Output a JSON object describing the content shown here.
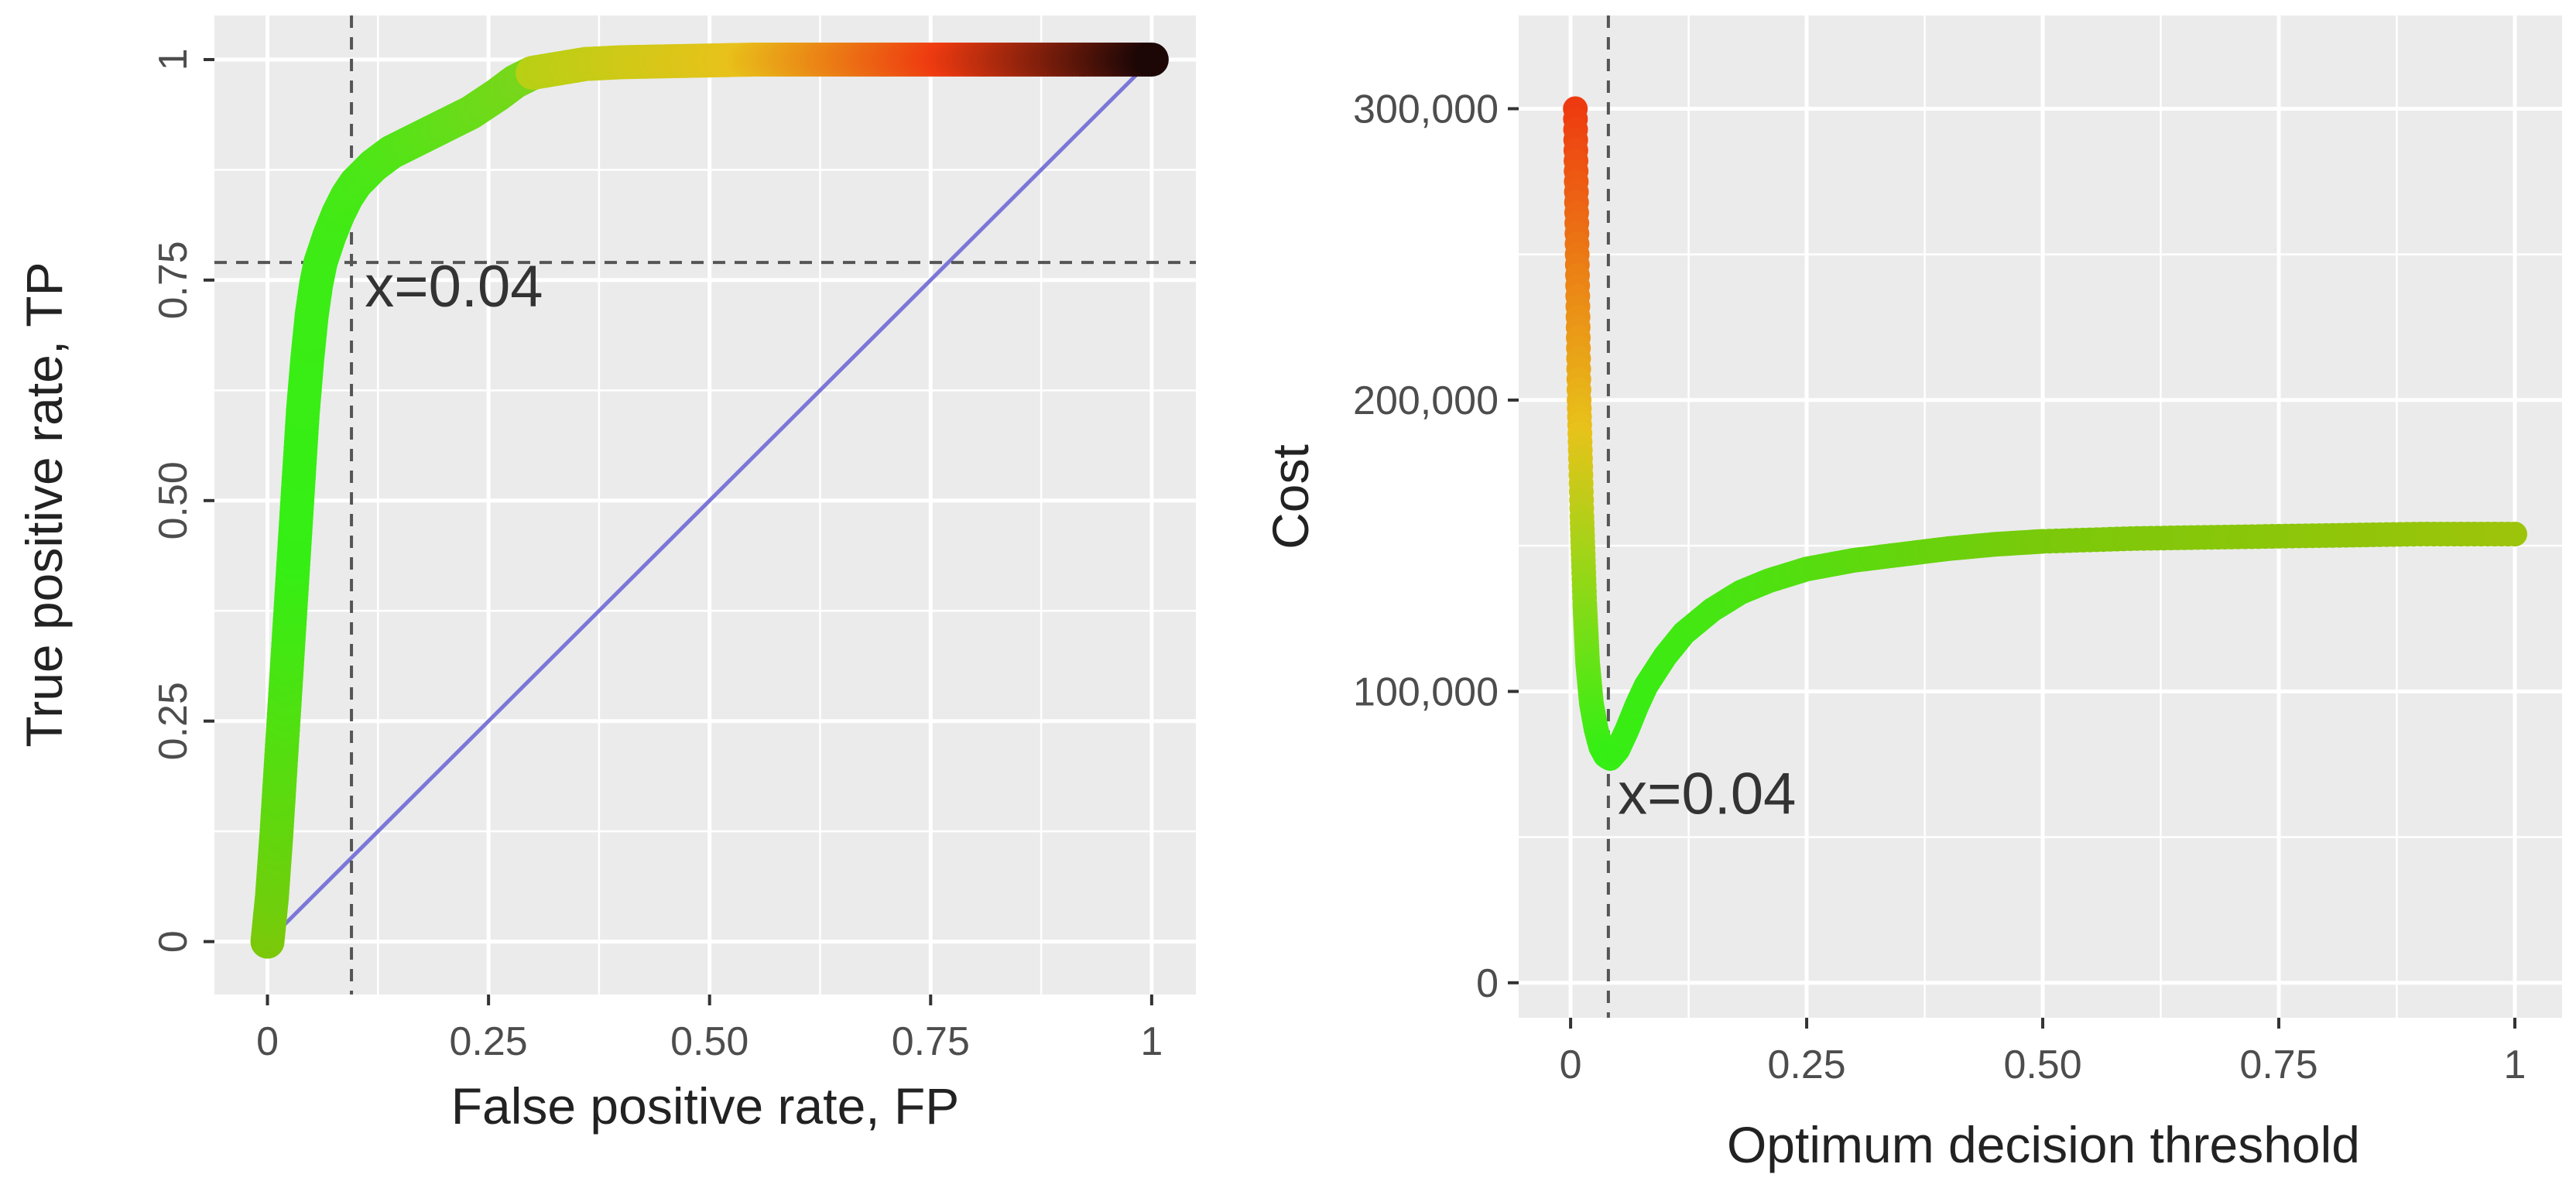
{
  "chart_data": [
    {
      "type": "scatter",
      "xlabel": "False positive rate, FP",
      "ylabel": "True positive rate, TP",
      "xlim": [
        -0.06,
        1.05
      ],
      "ylim": [
        -0.06,
        1.05
      ],
      "x_ticks": [
        0,
        0.25,
        0.5,
        0.75,
        1
      ],
      "x_tick_labels": [
        "0",
        "0.25",
        "0.50",
        "0.75",
        "1"
      ],
      "y_ticks": [
        0,
        0.25,
        0.5,
        0.75,
        1
      ],
      "y_tick_labels": [
        "0",
        "0.25",
        "0.50",
        "0.75",
        "1"
      ],
      "grid": true,
      "legend": "none",
      "series": [
        {
          "kind": "roc-curve",
          "x": [
            0,
            0.005,
            0.01,
            0.015,
            0.02,
            0.025,
            0.03,
            0.035,
            0.04,
            0.045,
            0.05,
            0.055,
            0.06,
            0.07,
            0.08,
            0.09,
            0.1,
            0.12,
            0.14,
            0.16,
            0.18,
            0.2,
            0.23,
            0.26,
            0.28,
            0.3,
            0.33,
            0.36,
            0.4,
            0.45,
            0.5,
            0.55,
            0.6,
            0.65,
            0.7,
            0.75,
            0.8,
            0.85,
            0.9,
            0.95,
            1.0
          ],
          "y": [
            0,
            0.05,
            0.12,
            0.2,
            0.28,
            0.36,
            0.44,
            0.52,
            0.6,
            0.66,
            0.71,
            0.745,
            0.77,
            0.8,
            0.825,
            0.845,
            0.86,
            0.88,
            0.895,
            0.905,
            0.915,
            0.925,
            0.94,
            0.96,
            0.975,
            0.985,
            0.99,
            0.995,
            0.997,
            0.998,
            0.999,
            1,
            1,
            1,
            1,
            1,
            1,
            1,
            1,
            1,
            1
          ],
          "color_scale": [
            "#7cc80a",
            "#35ef14",
            "#e8c21a",
            "#ee3a10",
            "#1c0606"
          ]
        },
        {
          "kind": "reference-diagonal",
          "x": [
            0,
            1
          ],
          "y": [
            0,
            1
          ],
          "color": "#7b77d8"
        }
      ],
      "reference_lines": {
        "vline_x": 0.095,
        "hline_y": 0.77
      },
      "annotation": {
        "text": "x=0.04",
        "x": 0.11,
        "y": 0.72
      }
    },
    {
      "type": "scatter",
      "xlabel": "Optimum decision threshold",
      "ylabel": "Cost",
      "xlim": [
        -0.055,
        1.05
      ],
      "ylim": [
        -12000,
        332000
      ],
      "x_ticks": [
        0,
        0.25,
        0.5,
        0.75,
        1
      ],
      "x_tick_labels": [
        "0",
        "0.25",
        "0.50",
        "0.75",
        "1"
      ],
      "y_ticks": [
        0,
        100000,
        200000,
        300000
      ],
      "y_tick_labels": [
        "0",
        "100,000",
        "200,000",
        "300,000"
      ],
      "grid": true,
      "legend": "none",
      "series": [
        {
          "kind": "cost-curve",
          "x": [
            0.005,
            0.007,
            0.009,
            0.012,
            0.015,
            0.018,
            0.022,
            0.027,
            0.032,
            0.037,
            0.042,
            0.05,
            0.06,
            0.07,
            0.08,
            0.1,
            0.12,
            0.15,
            0.18,
            0.21,
            0.25,
            0.3,
            0.35,
            0.4,
            0.45,
            0.5,
            0.6,
            0.7,
            0.8,
            0.9,
            1.0
          ],
          "y": [
            300000,
            250000,
            200000,
            160000,
            130000,
            110000,
            96000,
            87000,
            81000,
            78000,
            77000,
            80000,
            87000,
            95000,
            102000,
            112000,
            120000,
            128000,
            134000,
            138000,
            142000,
            145000,
            147000,
            149000,
            150500,
            151500,
            152500,
            153000,
            153500,
            154000,
            154000
          ],
          "color_scale": [
            "#ee3a10",
            "#e8c21a",
            "#35ef14",
            "#7cc80a"
          ]
        }
      ],
      "reference_lines": {
        "vline_x": 0.04
      },
      "annotation": {
        "text": "x=0.04",
        "x": 0.05,
        "y": 58000
      }
    }
  ]
}
